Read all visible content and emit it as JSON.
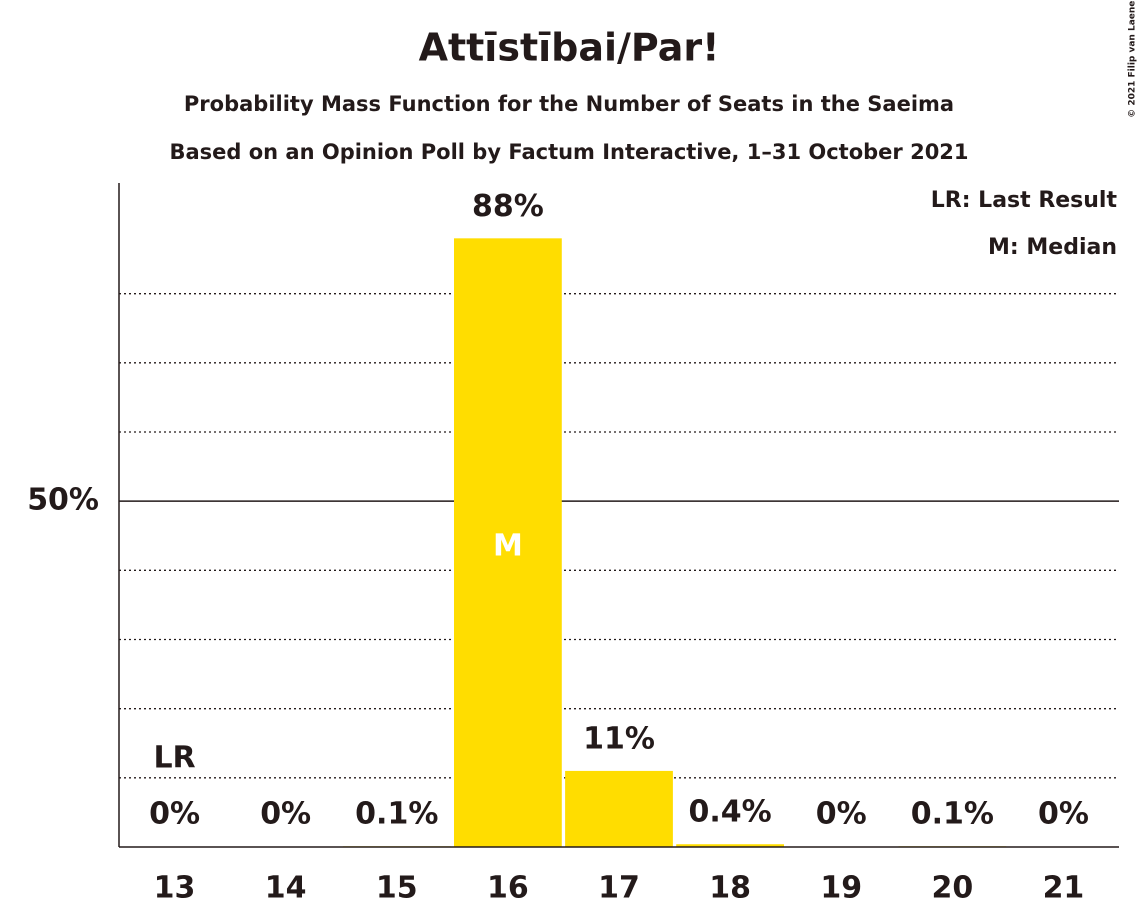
{
  "chart_data": {
    "type": "bar",
    "title": "Attīstībai/Par!",
    "subtitle": "Probability Mass Function for the Number of Seats in the Saeima",
    "subtitle2": "Based on an Opinion Poll by Factum Interactive, 1–31 October 2021",
    "copyright": "© 2021 Filip van Laenen",
    "x": [
      13,
      14,
      15,
      16,
      17,
      18,
      19,
      20,
      21
    ],
    "values": [
      0,
      0,
      0.1,
      88,
      11,
      0.4,
      0,
      0.1,
      0
    ],
    "value_labels": [
      "0%",
      "0%",
      "0.1%",
      "88%",
      "11%",
      "0.4%",
      "0%",
      "0.1%",
      "0%"
    ],
    "color": "#ffdd00",
    "xlim": [
      12.5,
      21.5
    ],
    "ylim": [
      0,
      96
    ],
    "yticks": [
      {
        "value": 50,
        "label": "50%"
      }
    ],
    "minor_yticks": [
      10,
      20,
      30,
      40,
      60,
      70,
      80
    ],
    "last_result": 13,
    "last_result_label": "LR",
    "median": 16,
    "median_label": "M",
    "legend": [
      "LR: Last Result",
      "M: Median"
    ]
  }
}
